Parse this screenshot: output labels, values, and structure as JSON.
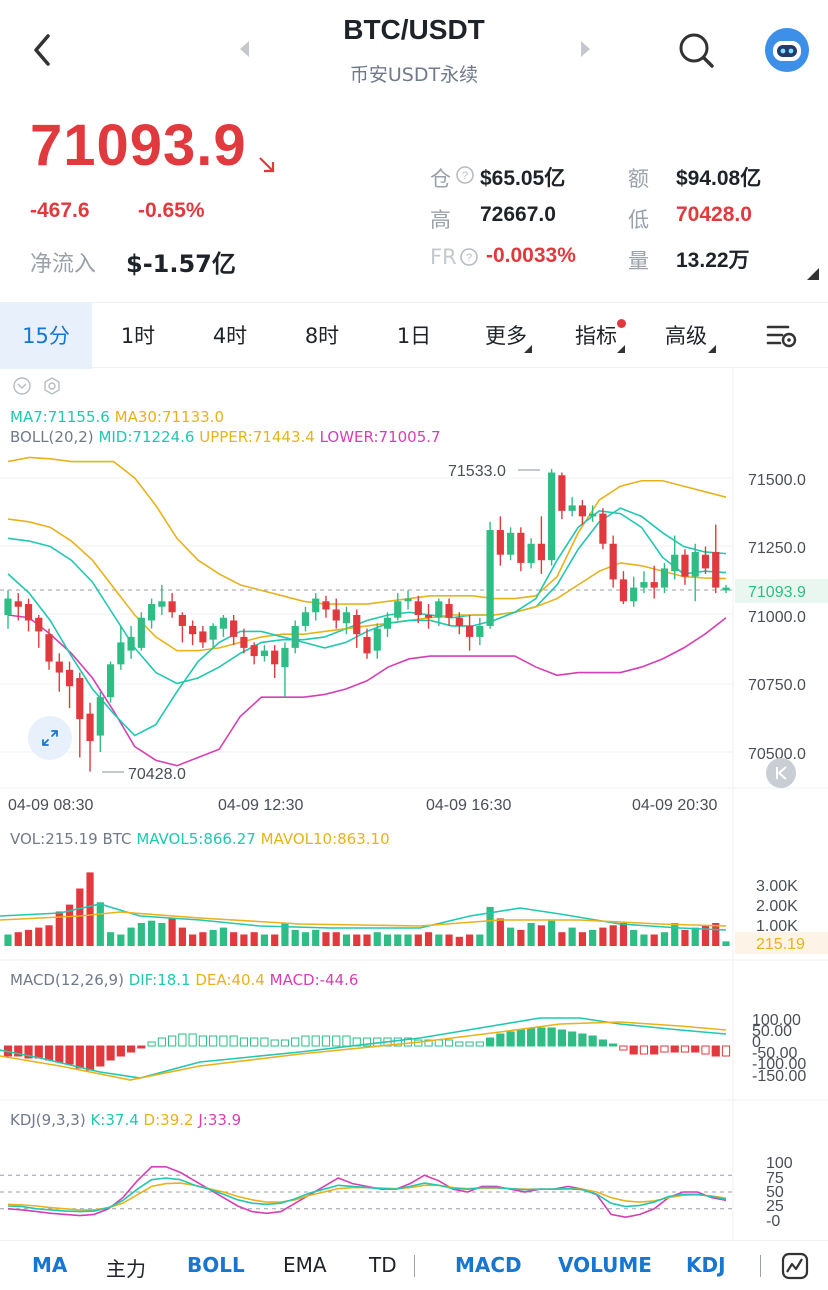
{
  "header": {
    "title": "BTC/USDT",
    "subtitle": "币安USDT永续"
  },
  "ticker": {
    "price": "71093.9",
    "change": "-467.6",
    "change_pct": "-0.65%",
    "net_inflow_label": "净流入",
    "net_inflow_value": "$-1.57亿",
    "stats": [
      {
        "label": "仓",
        "value": "$65.05亿"
      },
      {
        "label": "额",
        "value": "$94.08亿"
      },
      {
        "label": "高",
        "value": "72667.0"
      },
      {
        "label": "低",
        "value": "70428.0"
      },
      {
        "label": "FR",
        "value": "-0.0033%"
      },
      {
        "label": "量",
        "value": "13.22万"
      }
    ]
  },
  "tabs": [
    "15分",
    "1时",
    "4时",
    "8时",
    "1日",
    "更多",
    "指标",
    "高级"
  ],
  "main_chart": {
    "ma_legend": {
      "ma7": "MA7:71155.6",
      "ma30": "MA30:71133.0"
    },
    "boll_legend": {
      "label": "BOLL(20,2)",
      "mid": "MID:71224.6",
      "upper": "UPPER:71443.4",
      "lower": "LOWER:71005.7"
    },
    "y_ticks": [
      "71500.0",
      "71250.0",
      "71000.0",
      "70750.0",
      "70500.0"
    ],
    "current_price_tag": "71093.9",
    "high_marker": "71533.0",
    "low_marker": "70428.0",
    "x_ticks": [
      "04-09 08:30",
      "04-09 12:30",
      "04-09 16:30",
      "04-09 20:30"
    ]
  },
  "vol_chart": {
    "legend": {
      "vol": "VOL:215.19 BTC",
      "mavol5": "MAVOL5:866.27",
      "mavol10": "MAVOL10:863.10"
    },
    "y_ticks": [
      "3.00K",
      "2.00K",
      "1.00K"
    ],
    "current_tag": "215.19"
  },
  "macd_chart": {
    "legend": {
      "label": "MACD(12,26,9)",
      "dif": "DIF:18.1",
      "dea": "DEA:40.4",
      "macd": "MACD:-44.6"
    },
    "y_ticks": [
      "100.00",
      "50.00",
      "0",
      "-50.00",
      "-100.00",
      "-150.00"
    ]
  },
  "kdj_chart": {
    "legend": {
      "label": "KDJ(9,3,3)",
      "k": "K:37.4",
      "d": "D:39.2",
      "j": "J:33.9"
    },
    "y_ticks": [
      "100",
      "75",
      "50",
      "25",
      "-0"
    ]
  },
  "bottom_bar": [
    "MA",
    "主力",
    "BOLL",
    "EMA",
    "TD",
    "MACD",
    "VOLUME",
    "KDJ"
  ],
  "colors": {
    "up": "#2ebd85",
    "down": "#e03a3e",
    "accent": "#1676d2",
    "ma7": "#21c7b0",
    "ma30": "#e8b21b",
    "lower": "#d63fb4"
  },
  "icons": [
    "back-icon",
    "prev-arrow-icon",
    "next-arrow-icon",
    "search-icon",
    "avatar-icon",
    "settings-icon",
    "expand-icon",
    "collapse-icon",
    "drawing-icon"
  ]
}
